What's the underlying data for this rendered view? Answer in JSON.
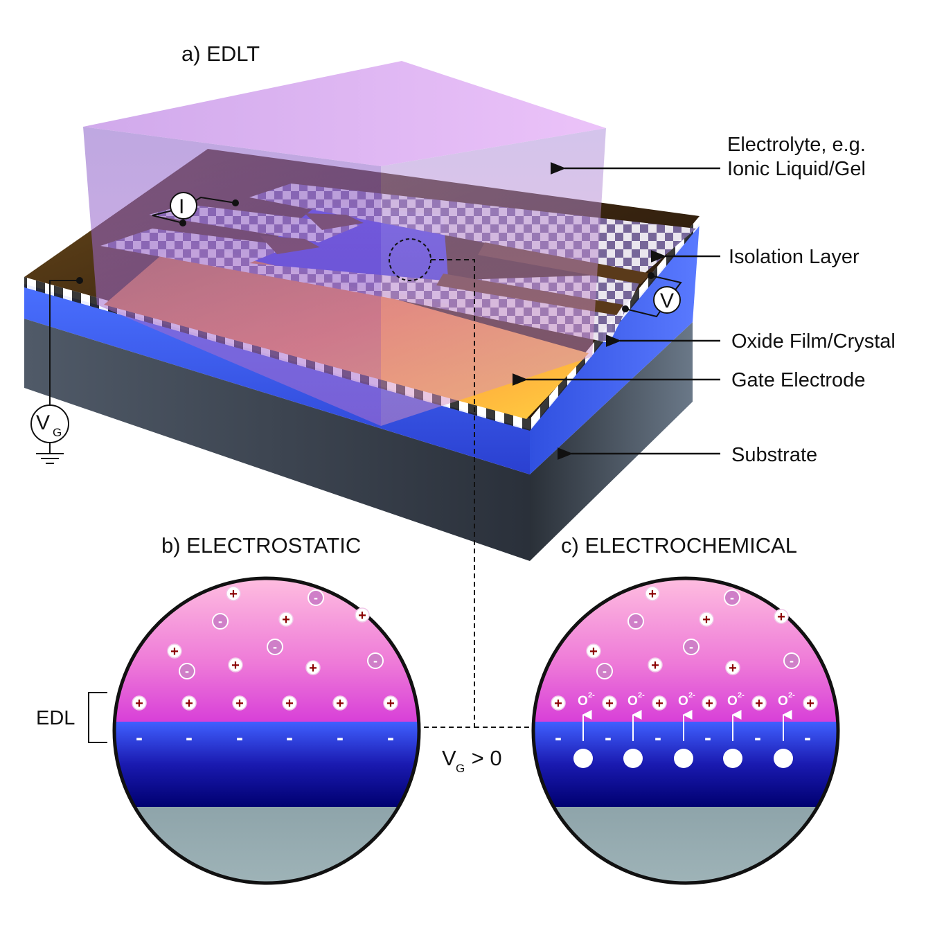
{
  "titles": {
    "a": "a) EDLT",
    "b": "b) ELECTROSTATIC",
    "c": "c) ELECTROCHEMICAL"
  },
  "labels": {
    "electrolyte_line1": "Electrolyte, e.g.",
    "electrolyte_line2": "Ionic Liquid/Gel",
    "isolation": "Isolation Layer",
    "oxide": "Oxide Film/Crystal",
    "gate": "Gate Electrode",
    "substrate": "Substrate",
    "edl": "EDL"
  },
  "symbols": {
    "current": "I",
    "voltage": "V",
    "gate_voltage": "V",
    "gate_voltage_sub": "G",
    "condition_v": "V",
    "condition_sub": "G",
    "condition_rest": " > 0",
    "oxygen": "O",
    "oxygen_charge": "2-",
    "plus": "+",
    "minus": "-"
  },
  "colors": {
    "electrolyte": "#b080e0",
    "gate_electrode": "#f5a623",
    "oxide": "#3a60f0",
    "substrate": "#4a5565",
    "cation": "#8b0000",
    "anion_fill": "#cf7fc8"
  }
}
